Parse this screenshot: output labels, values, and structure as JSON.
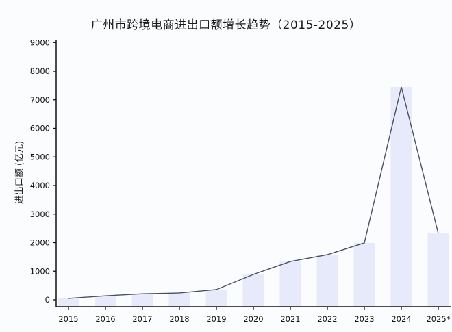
{
  "title": "广州市跨境电商进出口额增长趋势（2015-2025）",
  "colors": {
    "background": "#fbfcfe",
    "bar": "#e6eafb",
    "line": "#4a4f5e",
    "axis": "#111111"
  },
  "chart_data": {
    "type": "bar",
    "title": "广州市跨境电商进出口额增长趋势（2015-2025）",
    "xlabel": "",
    "ylabel": "进出口额 (亿元)",
    "ylim": [
      0,
      9000
    ],
    "yticks": [
      0,
      1000,
      2000,
      3000,
      4000,
      5000,
      6000,
      7000,
      8000,
      9000
    ],
    "grid": false,
    "legend": null,
    "categories": [
      "2015",
      "2016",
      "2017",
      "2018",
      "2019",
      "2020",
      "2021",
      "2022",
      "2023",
      "2024",
      "2025*"
    ],
    "series": [
      {
        "name": "进出口额 (柱)",
        "type": "bar",
        "values": [
          50,
          140,
          210,
          240,
          360,
          890,
          1340,
          1580,
          1990,
          7450,
          2320
        ]
      },
      {
        "name": "进出口额 (折线)",
        "type": "line",
        "values": [
          50,
          140,
          210,
          240,
          360,
          890,
          1340,
          1580,
          1990,
          7450,
          2320
        ]
      }
    ]
  }
}
